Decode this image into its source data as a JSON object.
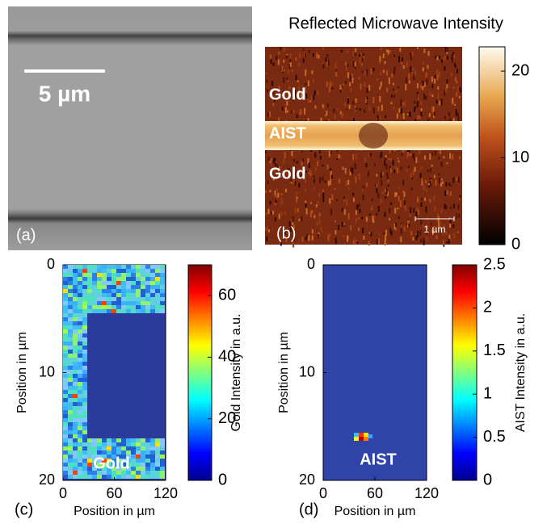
{
  "panels": [
    {
      "label": "(a)",
      "scale_bar": "5 µm"
    },
    {
      "label": "(b)",
      "title": "Reflected Microwave Intensity",
      "regions": [
        "Gold",
        "AIST",
        "Gold"
      ],
      "scale_bar": "1 µm",
      "colorbar": {
        "lim": [
          0,
          22.8
        ],
        "ticks": [
          0,
          10,
          20
        ]
      }
    },
    {
      "label": "(c)",
      "region": "Gold",
      "xlabel": "Position in µm",
      "ylabel": "Position in µm",
      "xlim": [
        0,
        120
      ],
      "xticks": [
        0,
        60,
        120
      ],
      "ylim": [
        0,
        20
      ],
      "yticks": [
        0,
        10,
        20
      ],
      "colorbar": {
        "label": "Gold Intensity in a.u.",
        "lim": [
          0,
          70
        ],
        "ticks": [
          0,
          20,
          40,
          60
        ]
      }
    },
    {
      "label": "(d)",
      "region": "AIST",
      "xlabel": "Position in µm",
      "ylabel": "Position in µm",
      "xlim": [
        0,
        120
      ],
      "xticks": [
        0,
        60,
        120
      ],
      "ylim": [
        0,
        20
      ],
      "yticks": [
        0,
        10,
        20
      ],
      "colorbar": {
        "label": "AIST Intensity in a.u.",
        "lim": [
          0,
          2.5
        ],
        "ticks": [
          0,
          0.5,
          1,
          1.5,
          2,
          2.5
        ]
      }
    }
  ]
}
